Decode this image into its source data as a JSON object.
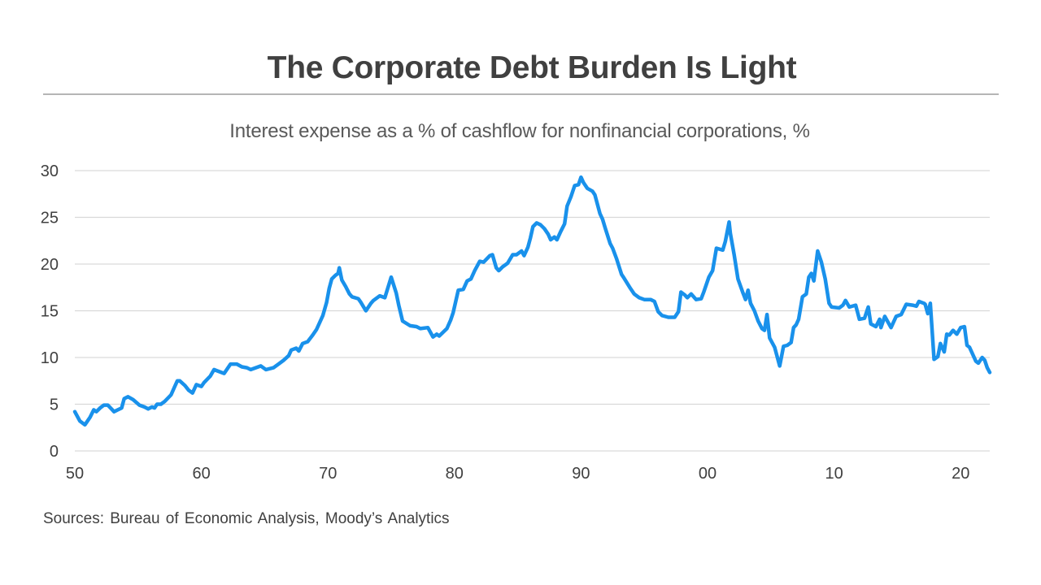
{
  "header": {
    "title": "The Corporate Debt Burden Is Light",
    "subtitle": "Interest expense as a % of cashflow for nonfinancial corporations, %"
  },
  "footer": {
    "source": "Sources: Bureau  of Economic Analysis,  Moody’s Analytics"
  },
  "colors": {
    "line": "#1991EB",
    "grid": "#D9D9D9",
    "text": "#404040"
  },
  "chart_data": {
    "type": "line",
    "title": "The Corporate Debt Burden Is Light",
    "subtitle": "Interest expense as a % of cashflow for nonfinancial corporations, %",
    "xlabel": "",
    "ylabel": "",
    "xlim": [
      1950,
      2022.3
    ],
    "ylim": [
      0,
      30
    ],
    "grid": "horizontal",
    "legend": "none",
    "x_ticks": [
      1950,
      1960,
      1970,
      1980,
      1990,
      2000,
      2010,
      2020
    ],
    "x_tick_labels": [
      "50",
      "60",
      "70",
      "80",
      "90",
      "00",
      "10",
      "20"
    ],
    "y_ticks": [
      0,
      5,
      10,
      15,
      20,
      25,
      30
    ],
    "y_tick_labels": [
      "0",
      "5",
      "10",
      "15",
      "20",
      "25",
      "30"
    ],
    "series": [
      {
        "name": "Interest expense as a % of cashflow",
        "color": "#1991EB",
        "x": [
          1950.0,
          1950.4,
          1950.8,
          1951.2,
          1951.5,
          1951.7,
          1952.0,
          1952.3,
          1952.6,
          1952.9,
          1953.1,
          1953.4,
          1953.7,
          1953.9,
          1954.2,
          1954.6,
          1955.1,
          1955.5,
          1955.8,
          1956.1,
          1956.3,
          1956.5,
          1956.8,
          1957.1,
          1957.6,
          1957.9,
          1958.1,
          1958.3,
          1958.7,
          1959.0,
          1959.3,
          1959.6,
          1960.0,
          1960.2,
          1960.7,
          1961.0,
          1961.2,
          1961.8,
          1962.3,
          1962.8,
          1963.2,
          1963.6,
          1963.9,
          1964.3,
          1964.7,
          1965.1,
          1965.7,
          1966.1,
          1966.5,
          1966.9,
          1967.1,
          1967.5,
          1967.7,
          1968.0,
          1968.4,
          1968.8,
          1969.1,
          1969.6,
          1969.9,
          1970.1,
          1970.3,
          1970.6,
          1970.8,
          1970.9,
          1971.1,
          1971.4,
          1971.7,
          1971.9,
          1972.4,
          1972.6,
          1973.0,
          1973.4,
          1973.6,
          1974.1,
          1974.5,
          1975.0,
          1975.4,
          1975.6,
          1975.9,
          1976.5,
          1977.0,
          1977.3,
          1977.9,
          1978.3,
          1978.6,
          1978.8,
          1979.4,
          1979.7,
          1979.9,
          1980.3,
          1980.7,
          1981.0,
          1981.3,
          1981.6,
          1982.0,
          1982.3,
          1982.8,
          1983.0,
          1983.3,
          1983.5,
          1983.8,
          1984.2,
          1984.6,
          1984.9,
          1985.3,
          1985.5,
          1985.8,
          1986.0,
          1986.2,
          1986.5,
          1986.8,
          1987.1,
          1987.4,
          1987.6,
          1987.9,
          1988.1,
          1988.4,
          1988.7,
          1988.9,
          1989.2,
          1989.5,
          1989.8,
          1990.0,
          1990.2,
          1990.5,
          1990.9,
          1991.1,
          1991.5,
          1991.7,
          1991.9,
          1992.3,
          1992.5,
          1992.8,
          1993.2,
          1993.4,
          1993.9,
          1994.2,
          1994.6,
          1995.0,
          1995.5,
          1995.8,
          1996.1,
          1996.4,
          1996.9,
          1997.4,
          1997.7,
          1997.9,
          1998.2,
          1998.4,
          1998.7,
          1999.1,
          1999.5,
          1999.7,
          2000.1,
          2000.4,
          2000.7,
          2001.2,
          2001.4,
          2001.7,
          2001.8,
          2002.1,
          2002.4,
          2002.8,
          2003.0,
          2003.2,
          2003.4,
          2003.7,
          2004.0,
          2004.3,
          2004.5,
          2004.7,
          2004.9,
          2005.3,
          2005.7,
          2006.0,
          2006.3,
          2006.6,
          2006.8,
          2007.0,
          2007.2,
          2007.5,
          2007.8,
          2008.0,
          2008.2,
          2008.4,
          2008.7,
          2009.0,
          2009.3,
          2009.6,
          2009.8,
          2010.4,
          2010.7,
          2010.9,
          2011.2,
          2011.7,
          2012.0,
          2012.4,
          2012.7,
          2012.9,
          2013.3,
          2013.6,
          2013.7,
          2014.0,
          2014.5,
          2014.9,
          2015.3,
          2015.7,
          2016.2,
          2016.5,
          2016.7,
          2017.1,
          2017.2,
          2017.4,
          2017.6,
          2017.9,
          2018.2,
          2018.4,
          2018.7,
          2018.9,
          2019.1,
          2019.4,
          2019.7,
          2020.0,
          2020.3,
          2020.5,
          2020.7,
          2021.2,
          2021.4,
          2021.7,
          2021.9,
          2022.1,
          2022.3
        ],
        "values": [
          4.2,
          3.2,
          2.8,
          3.6,
          4.4,
          4.2,
          4.6,
          4.9,
          4.9,
          4.5,
          4.2,
          4.4,
          4.6,
          5.6,
          5.8,
          5.5,
          4.9,
          4.7,
          4.5,
          4.7,
          4.6,
          5.0,
          5.0,
          5.3,
          6.0,
          6.9,
          7.5,
          7.5,
          7.0,
          6.5,
          6.2,
          7.1,
          6.9,
          7.3,
          8.0,
          8.7,
          8.6,
          8.3,
          9.3,
          9.3,
          9.0,
          8.9,
          8.7,
          8.9,
          9.1,
          8.7,
          8.9,
          9.3,
          9.7,
          10.2,
          10.8,
          11.0,
          10.7,
          11.5,
          11.7,
          12.4,
          13.0,
          14.5,
          15.9,
          17.4,
          18.4,
          18.8,
          19.0,
          19.6,
          18.3,
          17.6,
          16.8,
          16.5,
          16.3,
          15.9,
          15.0,
          15.8,
          16.1,
          16.6,
          16.4,
          18.6,
          16.9,
          15.6,
          13.9,
          13.4,
          13.3,
          13.1,
          13.2,
          12.2,
          12.5,
          12.3,
          13.1,
          14.0,
          14.8,
          17.2,
          17.3,
          18.2,
          18.4,
          19.3,
          20.3,
          20.2,
          20.9,
          21.0,
          19.6,
          19.3,
          19.7,
          20.1,
          21.0,
          21.0,
          21.4,
          20.9,
          21.8,
          22.8,
          24.0,
          24.4,
          24.2,
          23.8,
          23.2,
          22.6,
          22.9,
          22.6,
          23.5,
          24.3,
          26.2,
          27.2,
          28.4,
          28.5,
          29.3,
          28.7,
          28.1,
          27.8,
          27.4,
          25.4,
          24.8,
          23.9,
          22.2,
          21.7,
          20.6,
          18.9,
          18.5,
          17.4,
          16.8,
          16.4,
          16.2,
          16.2,
          16.0,
          14.9,
          14.5,
          14.3,
          14.3,
          14.9,
          17.0,
          16.7,
          16.4,
          16.8,
          16.2,
          16.3,
          17.0,
          18.6,
          19.3,
          21.7,
          21.5,
          22.4,
          24.5,
          23.3,
          21.0,
          18.4,
          16.9,
          16.2,
          17.2,
          15.8,
          15.0,
          13.9,
          13.1,
          12.9,
          14.6,
          12.1,
          11.1,
          9.1,
          11.2,
          11.3,
          11.6,
          13.2,
          13.5,
          14.1,
          16.5,
          16.8,
          18.6,
          19.0,
          18.2,
          21.4,
          20.2,
          18.4,
          15.8,
          15.4,
          15.3,
          15.6,
          16.1,
          15.4,
          15.6,
          14.1,
          14.2,
          15.4,
          13.6,
          13.3,
          14.1,
          13.2,
          14.4,
          13.2,
          14.4,
          14.6,
          15.7,
          15.6,
          15.5,
          16.0,
          15.8,
          15.7,
          14.7,
          15.8,
          9.8,
          10.1,
          11.5,
          10.6,
          12.5,
          12.4,
          12.9,
          12.5,
          13.2,
          13.3,
          11.3,
          11.1,
          9.6,
          9.4,
          10.0,
          9.7,
          8.9,
          8.4
        ]
      }
    ],
    "source": "Sources: Bureau  of Economic Analysis,  Moody’s Analytics"
  }
}
